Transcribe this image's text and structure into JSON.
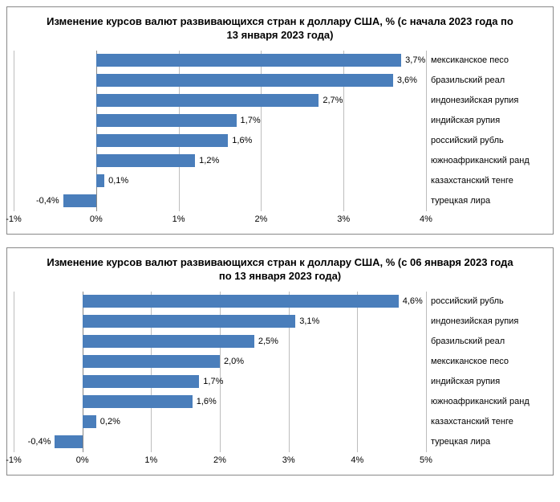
{
  "charts": [
    {
      "title": "Изменение курсов валют развивающихся стран к доллару США, % (с начала 2023 года по 13 января 2023 года)",
      "type": "bar-horizontal",
      "bar_color": "#4a7ebb",
      "grid_color": "#bdbdbd",
      "background_color": "#ffffff",
      "title_fontsize": 13,
      "label_fontsize": 11,
      "xmin": -1,
      "xmax": 4,
      "xtick_step": 1,
      "xtick_suffix": "%",
      "value_suffix": "%",
      "value_decimal_sep": ",",
      "bars": [
        {
          "category": "мексиканское песо",
          "value": 3.7
        },
        {
          "category": "бразильский реал",
          "value": 3.6
        },
        {
          "category": "индонезийская рупия",
          "value": 2.7
        },
        {
          "category": "индийская рупия",
          "value": 1.7
        },
        {
          "category": "российский рубль",
          "value": 1.6
        },
        {
          "category": "южноафриканский ранд",
          "value": 1.2
        },
        {
          "category": "казахстанский тенге",
          "value": 0.1
        },
        {
          "category": "турецкая лира",
          "value": -0.4
        }
      ]
    },
    {
      "title": "Изменение курсов валют развивающихся стран к доллару США, % (с 06 января 2023 года по 13 января 2023 года)",
      "type": "bar-horizontal",
      "bar_color": "#4a7ebb",
      "grid_color": "#bdbdbd",
      "background_color": "#ffffff",
      "title_fontsize": 13,
      "label_fontsize": 11,
      "xmin": -1,
      "xmax": 5,
      "xtick_step": 1,
      "xtick_suffix": "%",
      "value_suffix": "%",
      "value_decimal_sep": ",",
      "bars": [
        {
          "category": "российский рубль",
          "value": 4.6
        },
        {
          "category": "индонезийская рупия",
          "value": 3.1
        },
        {
          "category": "бразильский реал",
          "value": 2.5
        },
        {
          "category": "мексиканское песо",
          "value": 2.0
        },
        {
          "category": "индийская рупия",
          "value": 1.7
        },
        {
          "category": "южноафриканский ранд",
          "value": 1.6
        },
        {
          "category": "казахстанский тенге",
          "value": 0.2
        },
        {
          "category": "турецкая лира",
          "value": -0.4
        }
      ]
    }
  ]
}
